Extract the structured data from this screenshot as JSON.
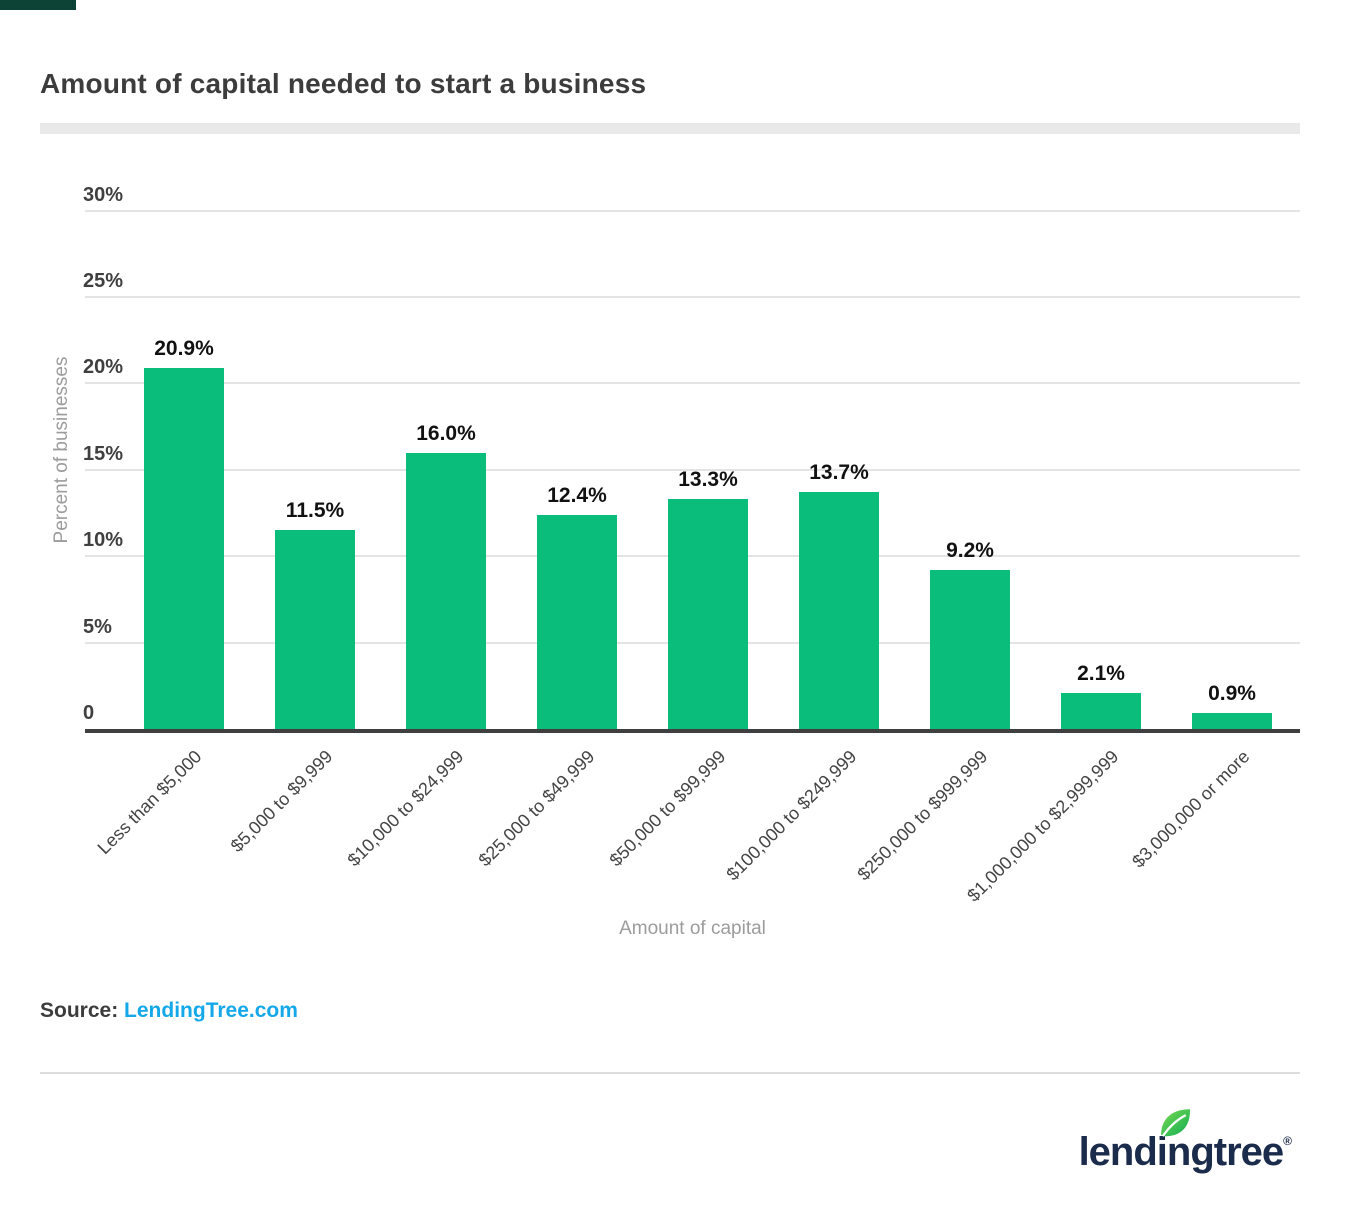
{
  "header": {
    "title": "Amount of capital needed to start a business"
  },
  "chart_data": {
    "type": "bar",
    "title": "Amount of capital needed to start a business",
    "xlabel": "Amount of capital",
    "ylabel": "Percent of businesses",
    "categories": [
      "Less than $5,000",
      "$5,000 to $9,999",
      "$10,000 to $24,999",
      "$25,000 to $49,999",
      "$50,000 to $99,999",
      "$100,000 to $249,999",
      "$250,000 to $999,999",
      "$1,000,000 to $2,999,999",
      "$3,000,000 or more"
    ],
    "values": [
      20.9,
      11.5,
      16.0,
      12.4,
      13.3,
      13.7,
      9.2,
      2.1,
      0.9
    ],
    "bar_labels": [
      "20.9%",
      "11.5%",
      "16.0%",
      "12.4%",
      "13.3%",
      "13.7%",
      "9.2%",
      "2.1%",
      "0.9%"
    ],
    "y_ticks": [
      {
        "label": "30%",
        "value": 30
      },
      {
        "label": "25%",
        "value": 25
      },
      {
        "label": "20%",
        "value": 20
      },
      {
        "label": "15%",
        "value": 15
      },
      {
        "label": "10%",
        "value": 10
      },
      {
        "label": "5%",
        "value": 5
      },
      {
        "label": "0",
        "value": 0
      }
    ],
    "ylim": [
      0,
      32
    ],
    "grid": "horizontal",
    "legend": "none",
    "bar_color": "#0abd7a"
  },
  "footer": {
    "source_label": "Source:",
    "source_link": "LendingTree.com",
    "logo_text": "lendingtree",
    "logo_reg": "®"
  },
  "colors": {
    "bar_green": "#0abd7a",
    "accent_dark_green": "#0d4237",
    "link_blue": "#14a8e9",
    "logo_navy": "#1b2b4b",
    "title_text": "#3c3c3c",
    "axis_line": "#3f3f3f",
    "gridline": "#e4e4e4",
    "muted_text": "#9c9c9c"
  }
}
